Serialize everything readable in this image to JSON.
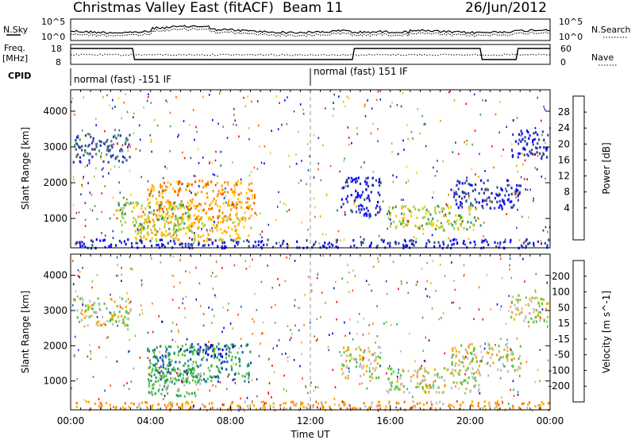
{
  "header": {
    "title": "Christmas Valley East (fitACF)",
    "beam": "Beam 11",
    "date": "26/Jun/2012"
  },
  "noise_panel": {
    "left_label": "N.Sky",
    "right_label": "N.Search",
    "left_ticks": [
      "10^5",
      "10^0"
    ],
    "right_ticks": [
      "10^5",
      "10^0"
    ]
  },
  "freq_panel": {
    "left_label_1": "Freq.",
    "left_label_2": "[MHz]",
    "right_label": "Nave",
    "left_ticks": [
      "18",
      "8"
    ],
    "right_ticks": [
      "60",
      "0"
    ]
  },
  "cpid": {
    "label": "CPID",
    "segments": [
      {
        "text": "normal (fast) -151 IF",
        "start_hour": 0,
        "end_hour": 12
      },
      {
        "text": "normal (fast) 151 IF",
        "start_hour": 12,
        "end_hour": 24
      }
    ]
  },
  "x_axis": {
    "label": "Time UT",
    "ticks": [
      "00:00",
      "04:00",
      "08:00",
      "12:00",
      "16:00",
      "20:00",
      "00:00"
    ]
  },
  "chart_data": [
    {
      "type": "heatmap",
      "panel": "power",
      "ylabel": "Slant Range [km]",
      "yticks": [
        1000,
        2000,
        3000,
        4000
      ],
      "ylim": [
        180,
        4600
      ],
      "xlim": [
        0,
        24
      ],
      "colorbar_label": "Power [dB]",
      "colorbar_ticks": [
        "28",
        "24",
        "20",
        "16",
        "12",
        "8",
        "4"
      ],
      "colorbar_colors": [
        "#ff0000",
        "#ff5a00",
        "#ff9600",
        "#ffc800",
        "#9bd24b",
        "#3c9b5a",
        "#32508c",
        "#1e28c8",
        "#0000ff"
      ],
      "blobs": [
        {
          "t0": 0.1,
          "t1": 3.0,
          "r0": 2600,
          "r1": 3400,
          "level": 2
        },
        {
          "t0": 3.8,
          "t1": 9.2,
          "r0": 1000,
          "r1": 2100,
          "level": 6
        },
        {
          "t0": 3.2,
          "t1": 9.0,
          "r0": 400,
          "r1": 1100,
          "level": 5
        },
        {
          "t0": 2.2,
          "t1": 6.0,
          "r0": 600,
          "r1": 1500,
          "level": 4
        },
        {
          "t0": 13.5,
          "t1": 15.5,
          "r0": 1100,
          "r1": 2200,
          "level": 1
        },
        {
          "t0": 15.8,
          "t1": 20.5,
          "r0": 700,
          "r1": 1400,
          "level": 4
        },
        {
          "t0": 19.0,
          "t1": 22.5,
          "r0": 1300,
          "r1": 2100,
          "level": 1
        },
        {
          "t0": 22.0,
          "t1": 23.9,
          "r0": 2700,
          "r1": 3500,
          "level": 1
        },
        {
          "t0": 0.2,
          "t1": 23.9,
          "r0": 200,
          "r1": 450,
          "level": 1
        }
      ]
    },
    {
      "type": "heatmap",
      "panel": "velocity",
      "ylabel": "Slant Range [km]",
      "yticks": [
        1000,
        2000,
        3000,
        4000
      ],
      "ylim": [
        180,
        4600
      ],
      "xlim": [
        0,
        24
      ],
      "colorbar_label": "Velocity [m s^-1]",
      "colorbar_ticks": [
        "200",
        "100",
        "50",
        "15",
        "-15",
        "-50",
        "-100",
        "-200"
      ],
      "colorbar_colors": [
        "#0000c8",
        "#1e50c8",
        "#2d9b5a",
        "#5ac83c",
        "#bebebe",
        "#ffaa00",
        "#ff7800",
        "#ff3c00",
        "#ff0000"
      ],
      "blobs": [
        {
          "t0": 0.1,
          "t1": 3.0,
          "r0": 2600,
          "r1": 3400,
          "level": 4
        },
        {
          "t0": 3.8,
          "t1": 6.5,
          "r0": 600,
          "r1": 1500,
          "level": 3
        },
        {
          "t0": 6.3,
          "t1": 8.2,
          "r0": 1700,
          "r1": 2100,
          "level": 0
        },
        {
          "t0": 3.8,
          "t1": 9.0,
          "r0": 1000,
          "r1": 2100,
          "level": 2
        },
        {
          "t0": 0.2,
          "t1": 23.9,
          "r0": 200,
          "r1": 450,
          "level": 5
        },
        {
          "t0": 13.5,
          "t1": 15.5,
          "r0": 1100,
          "r1": 2000,
          "level": 4
        },
        {
          "t0": 15.8,
          "t1": 20.5,
          "r0": 700,
          "r1": 1400,
          "level": 4
        },
        {
          "t0": 19.0,
          "t1": 22.5,
          "r0": 1300,
          "r1": 2100,
          "level": 4
        },
        {
          "t0": 22.0,
          "t1": 23.9,
          "r0": 2700,
          "r1": 3500,
          "level": 4
        }
      ]
    }
  ]
}
